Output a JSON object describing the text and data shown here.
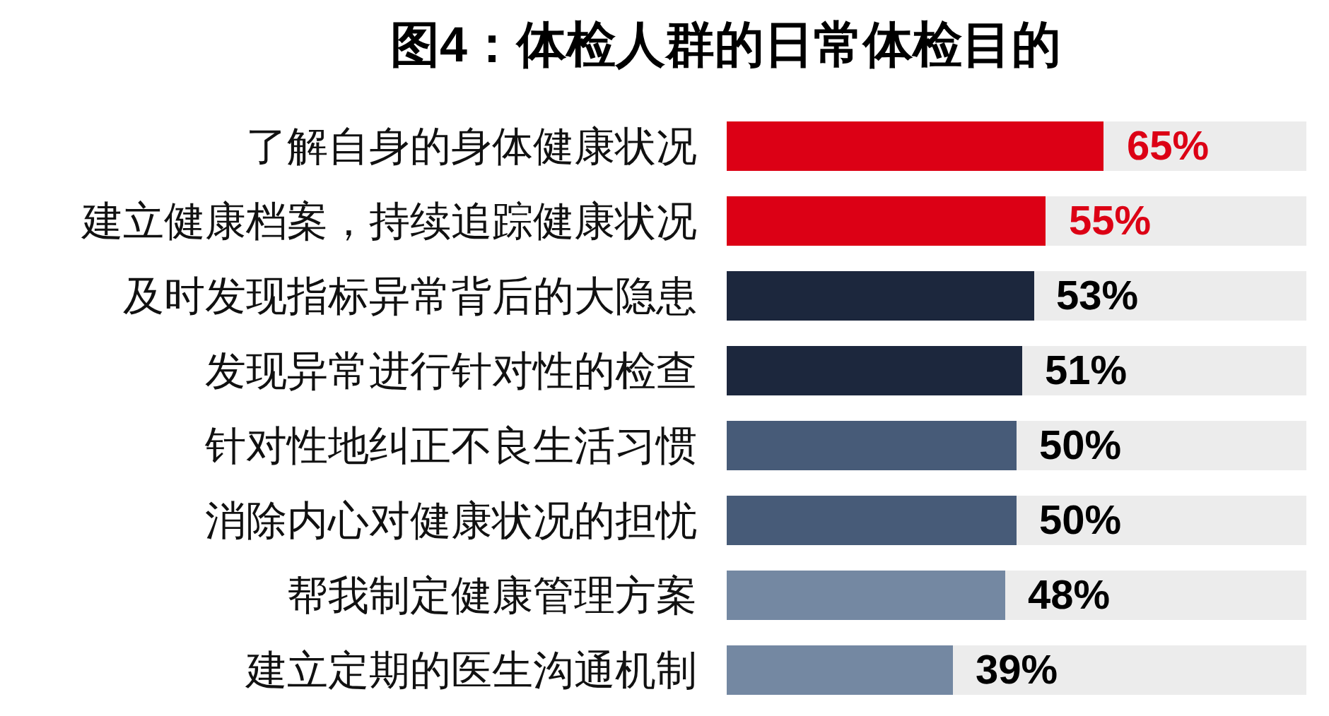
{
  "chart_data": {
    "type": "bar",
    "orientation": "horizontal",
    "stacked": true,
    "tick_labels": "y",
    "title": "图4：体检人群的日常体检目的",
    "categories": [
      "了解自身的身体健康状况",
      "建立健康档案，持续追踪健康状况",
      "及时发现指标异常背后的大隐患",
      "发现异常进行针对性的检查",
      "针对性地纠正不良生活习惯",
      "消除内心对健康状况的担忧",
      "帮我制定健康管理方案",
      "建立定期的医生沟通机制"
    ],
    "series": [
      {
        "colors": [
          "#dc0015",
          "#dc0015",
          "#1c273d",
          "#1c273d",
          "#475b78",
          "#475b78",
          "#7488a2",
          "#7488a2"
        ],
        "values": [
          65,
          55,
          53,
          51,
          50,
          50,
          48,
          39
        ],
        "value_labels": [
          "65%",
          "55%",
          "53%",
          "51%",
          "50%",
          "50%",
          "48%",
          "39%"
        ]
      },
      {
        "color": "#ececec",
        "values": [
          35,
          45,
          47,
          49,
          50,
          50,
          52,
          61
        ]
      }
    ]
  }
}
